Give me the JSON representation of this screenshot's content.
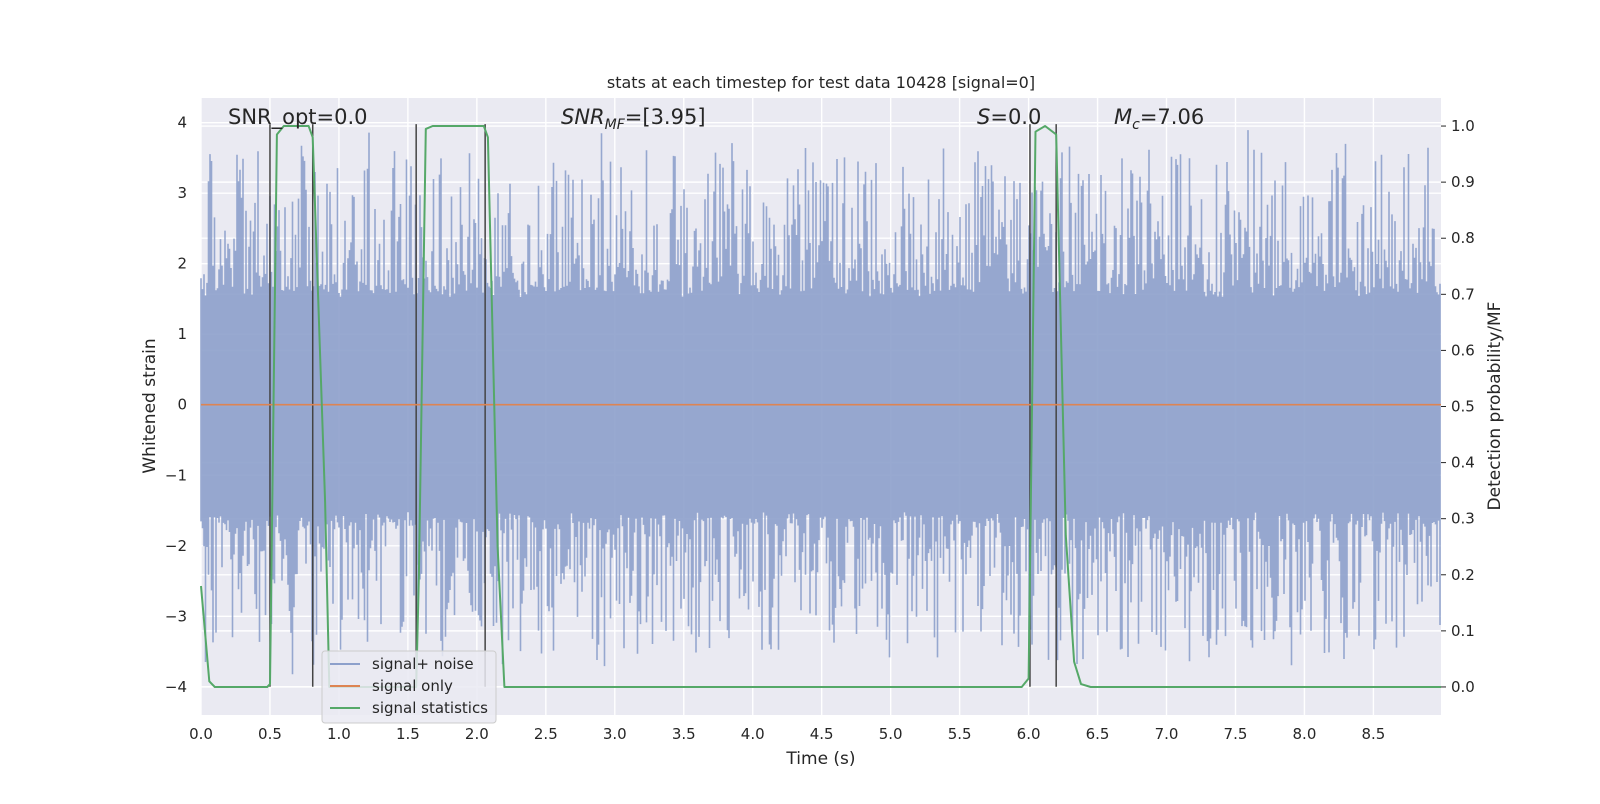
{
  "chart_data": {
    "type": "line",
    "title": "stats at each timestep for test data 10428 [signal=0]",
    "xlabel": "Time (s)",
    "ylabel_left": "Whitened strain",
    "ylabel_right": "Detection probability/MF",
    "xlim": [
      0.0,
      8.99
    ],
    "ylim_left": [
      -4.4,
      4.35
    ],
    "ylim_right": [
      -0.05,
      1.05
    ],
    "x_ticks": [
      0.0,
      0.5,
      1.0,
      1.5,
      2.0,
      2.5,
      3.0,
      3.5,
      4.0,
      4.5,
      5.0,
      5.5,
      6.0,
      6.5,
      7.0,
      7.5,
      8.0,
      8.5
    ],
    "x_tick_labels": [
      "0.0",
      "0.5",
      "1.0",
      "1.5",
      "2.0",
      "2.5",
      "3.0",
      "3.5",
      "4.0",
      "4.5",
      "5.0",
      "5.5",
      "6.0",
      "6.5",
      "7.0",
      "7.5",
      "8.0",
      "8.5"
    ],
    "y_left_ticks": [
      -4,
      -3,
      -2,
      -1,
      0,
      1,
      2,
      3,
      4
    ],
    "y_left_tick_labels": [
      "−4",
      "−3",
      "−2",
      "−1",
      "0",
      "1",
      "2",
      "3",
      "4"
    ],
    "y_right_ticks": [
      0.0,
      0.1,
      0.2,
      0.3,
      0.4,
      0.5,
      0.6,
      0.7,
      0.8,
      0.9,
      1.0
    ],
    "y_right_tick_labels": [
      "0.0",
      "0.1",
      "0.2",
      "0.3",
      "0.4",
      "0.5",
      "0.6",
      "0.7",
      "0.8",
      "0.9",
      "1.0"
    ],
    "grid": true,
    "legend_position": "lower-left",
    "annotations": {
      "snr_opt": "SNR_opt=0.0",
      "snr_mf_main": "SNR",
      "snr_mf_sub": "MF",
      "snr_mf_value": "=[3.95]",
      "s_main": "S",
      "s_value": "=0.0",
      "mc_main": "M",
      "mc_sub": "c",
      "mc_value": "=7.06"
    },
    "series": [
      {
        "name": "signal+ noise",
        "color": "#8da0cb",
        "axis": "left",
        "kind": "noise",
        "envelope": {
          "core_abs": 1.6,
          "peak_max": 4.0,
          "peak_min": -4.0
        }
      },
      {
        "name": "signal only",
        "color": "#dd8452",
        "axis": "left",
        "x": [
          0.0,
          8.99
        ],
        "y": [
          0.0,
          0.0
        ]
      },
      {
        "name": "signal statistics",
        "color": "#55a868",
        "axis": "right",
        "x": [
          0.0,
          0.06,
          0.1,
          0.15,
          0.48,
          0.5,
          0.55,
          0.6,
          0.78,
          0.81,
          0.9,
          0.93,
          1.0,
          1.56,
          1.58,
          1.63,
          1.68,
          2.05,
          2.08,
          2.15,
          2.2,
          5.92,
          5.95,
          6.0,
          6.05,
          6.12,
          6.2,
          6.27,
          6.33,
          6.38,
          6.45,
          8.99
        ],
        "y": [
          0.18,
          0.01,
          0.0,
          0.0,
          0.0,
          0.005,
          0.985,
          1.0,
          1.0,
          0.98,
          0.33,
          0.0,
          0.0,
          0.0,
          0.2,
          0.995,
          1.0,
          1.0,
          0.98,
          0.25,
          0.0,
          0.0,
          0.0,
          0.015,
          0.99,
          1.0,
          0.985,
          0.27,
          0.045,
          0.005,
          0.0,
          0.0
        ]
      }
    ],
    "vertical_markers_x": [
      0.5,
      0.81,
      1.56,
      2.06,
      6.01,
      6.2
    ]
  }
}
